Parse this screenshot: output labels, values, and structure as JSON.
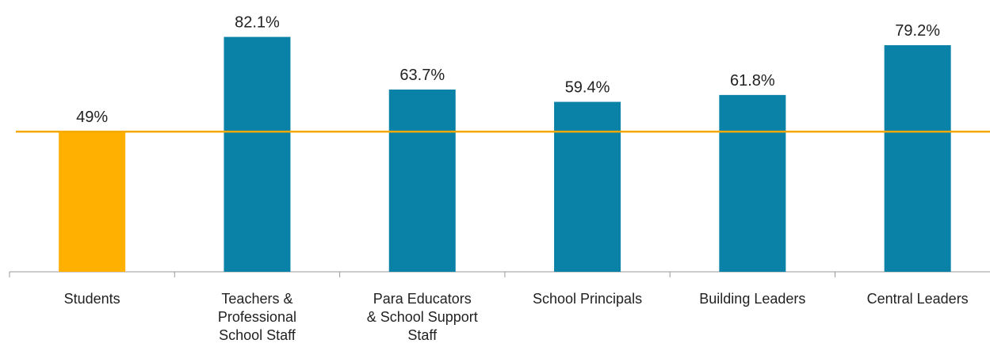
{
  "chart_data": {
    "type": "bar",
    "categories": [
      "Students",
      "Teachers &\nProfessional\nSchool Staff",
      "Para Educators\n& School Support\nStaff",
      "School Principals",
      "Building Leaders",
      "Central Leaders"
    ],
    "values": [
      49,
      82.1,
      63.7,
      59.4,
      61.8,
      79.2
    ],
    "value_labels": [
      "49%",
      "82.1%",
      "63.7%",
      "59.4%",
      "61.8%",
      "79.2%"
    ],
    "colors": [
      "#ffb000",
      "#0a82a8",
      "#0a82a8",
      "#0a82a8",
      "#0a82a8",
      "#0a82a8"
    ],
    "reference_line": {
      "value": 49,
      "color": "#f5a800"
    },
    "ylim": [
      0,
      95
    ]
  }
}
